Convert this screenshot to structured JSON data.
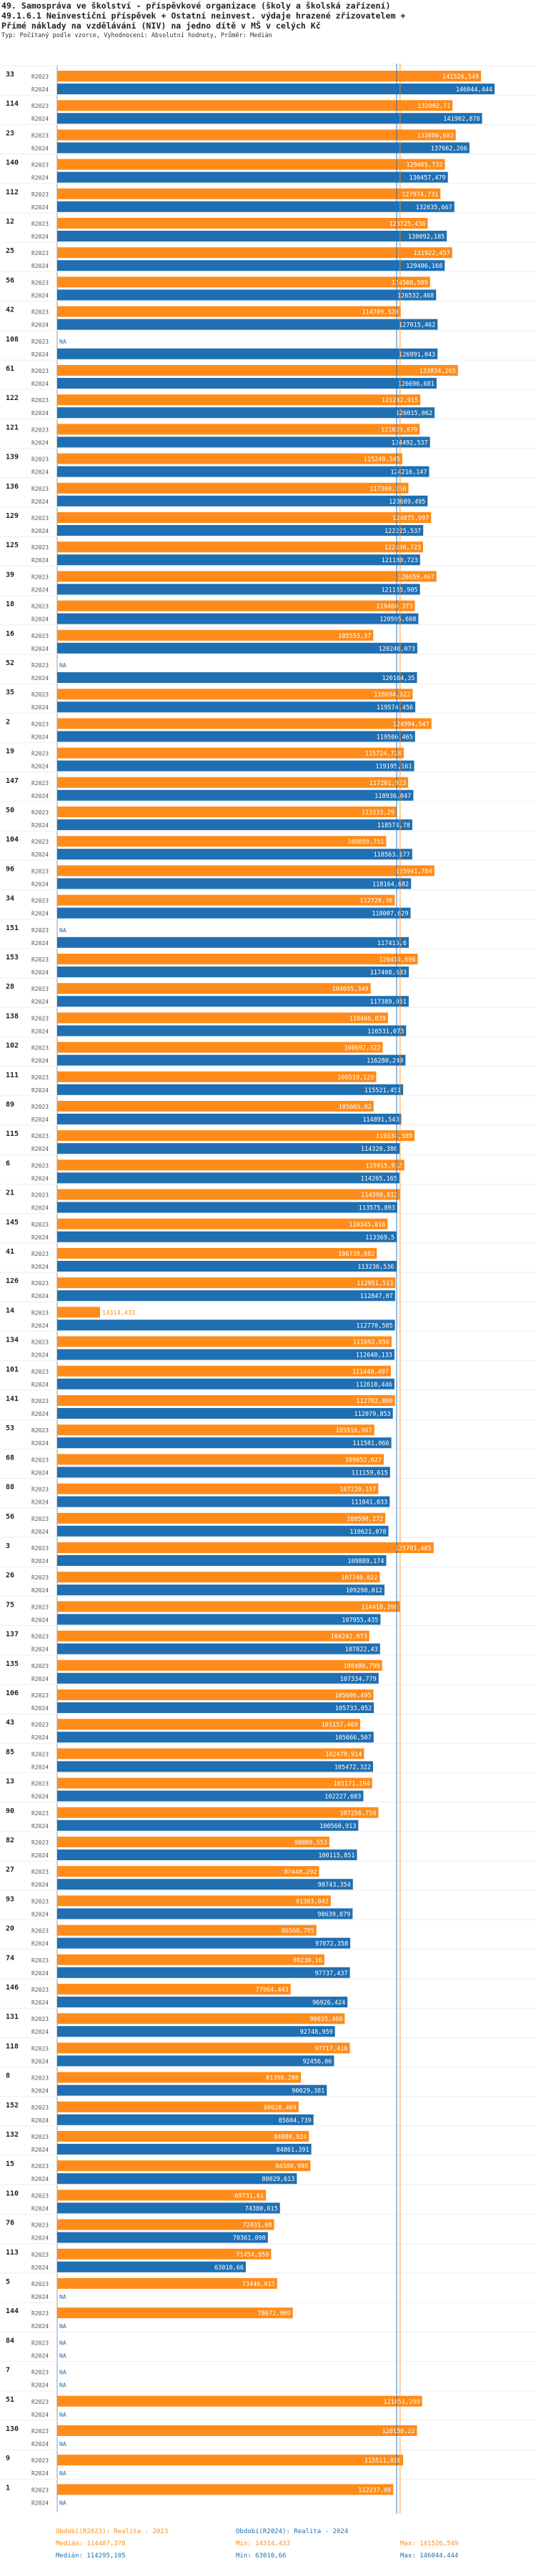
{
  "header": {
    "title_line1": "49. Samospráva ve školství - příspěvkové organizace (školy a školská zařízení)",
    "title_line2": "49.1.6.1 Neinvestiční příspěvek + Ostatní neinvest. výdaje hrazené zřizovatelem +",
    "title_line3": "Přímé náklady na vzdělávání (NIV) na jedno dítě v MŠ v celých Kč",
    "subtitle": "Typ: Počítaný podle vzorce, Vyhodnocení: Absolutní hodnoty, Průměr: Medián"
  },
  "colors": {
    "r2023": "#ff8c1a",
    "r2024": "#1f6fb2",
    "median2023": "#ff8c1a",
    "median2024": "#1f6fb2"
  },
  "legend": {
    "s2023": "Období(R2023): Realita - 2023",
    "s2024": "Období(R2024): Realita - 2024",
    "median2023": "Medián: 114487,378",
    "median2024": "Medián: 114295,105",
    "min2023": "Min: 14314,433",
    "min2024": "Min: 63010,66",
    "max2023": "Max: 141526,549",
    "max2024": "Max: 146044,444"
  },
  "chart_data": {
    "type": "bar",
    "orientation": "horizontal",
    "title": "49.1.6.1 Neinvestiční příspěvek + Ostatní neinvest. výdaje hrazené zřizovatelem + Přímé náklady na vzdělávání (NIV) na jedno dítě v MŠ v celých Kč",
    "xlim": [
      0,
      146044.444
    ],
    "series_names": [
      "R2023",
      "R2024"
    ],
    "medians": {
      "R2023": 114487.378,
      "R2024": 114295.105
    },
    "categories": [
      "33",
      "114",
      "23",
      "140",
      "112",
      "12",
      "25",
      "56",
      "42",
      "108",
      "61",
      "122",
      "121",
      "139",
      "136",
      "129",
      "125",
      "39",
      "18",
      "16",
      "52",
      "35",
      "2",
      "19",
      "147",
      "50",
      "104",
      "96",
      "34",
      "151",
      "153",
      "28",
      "138",
      "102",
      "111",
      "89",
      "115",
      "6",
      "21",
      "145",
      "41",
      "126",
      "14",
      "134",
      "101",
      "141",
      "53",
      "68",
      "88",
      "56",
      "3",
      "26",
      "75",
      "137",
      "135",
      "106",
      "43",
      "85",
      "13",
      "90",
      "82",
      "27",
      "93",
      "20",
      "74",
      "146",
      "131",
      "118",
      "8",
      "152",
      "132",
      "15",
      "110",
      "76",
      "113",
      "5",
      "144",
      "84",
      "7",
      "51",
      "130",
      "9",
      "1"
    ],
    "r2023_labels": [
      "141526,549",
      "132002,71",
      "133086,683",
      "129465,732",
      "127974,731",
      "123725,436",
      "131922,457",
      "124508,509",
      "114709,528",
      "NA",
      "133834,265",
      "121242,915",
      "121026,879",
      "115240,345",
      "117300,256",
      "124875,997",
      "122180,723",
      "126659,467",
      "119460,373",
      "105553,37",
      "NA",
      "118694,622",
      "124994,547",
      "115724,728",
      "117201,923",
      "113333,29",
      "109859,751",
      "125941,784",
      "112728,36",
      "NA",
      "120414,696",
      "104695,349",
      "110466,039",
      "108692,322",
      "106519,129",
      "105665,82",
      "119334,589",
      "115915,912",
      "114398,012",
      "110345,016",
      "106738,082",
      "112951,513",
      "14314,433",
      "111692,056",
      "111448,497",
      "112782,808",
      "105916,967",
      "109052,027",
      "107220,157",
      "109590,272",
      "125701,405",
      "107740,022",
      "114418,396",
      "104242,873",
      "108480,799",
      "105606,495",
      "101157,469",
      "102479,914",
      "105171,194",
      "107256,758",
      "90889,553",
      "87448,292",
      "91383,042",
      "86568,795",
      "89230,16",
      "77964,443",
      "96035,466",
      "97717,416",
      "81398,288",
      "80628,409",
      "84080,924",
      "84580,998",
      "69731,61",
      "72431,08",
      "71454,959",
      "73446,015",
      "78672,909",
      "NA",
      "NA",
      "121851,299",
      "120158,22",
      "115511,816",
      "112237,08"
    ],
    "r2024_labels": [
      "146044,444",
      "141902,878",
      "137662,266",
      "130457,479",
      "132635,667",
      "130092,185",
      "129406,168",
      "126532,468",
      "127015,462",
      "126991,043",
      "126696,681",
      "126015,062",
      "124492,537",
      "124216,147",
      "123689,495",
      "122225,537",
      "121180,723",
      "121135,905",
      "120595,608",
      "120246,073",
      "120164,35",
      "119574,456",
      "119506,465",
      "119195,161",
      "118936,047",
      "118574,78",
      "118563,177",
      "118164,682",
      "118007,629",
      "117415,6",
      "117408,683",
      "117389,051",
      "116531,073",
      "116280,249",
      "115521,451",
      "114891,543",
      "114320,386",
      "114265,165",
      "113575,893",
      "113369,5",
      "113236,536",
      "112847,07",
      "112770,585",
      "112640,133",
      "112610,446",
      "112079,853",
      "111581,066",
      "111159,615",
      "111041,033",
      "110621,078",
      "109889,174",
      "109298,012",
      "107955,435",
      "107822,43",
      "107334,779",
      "105733,052",
      "105666,507",
      "105472,322",
      "102227,603",
      "100560,913",
      "100115,851",
      "98743,354",
      "98639,879",
      "97872,358",
      "97737,437",
      "96926,424",
      "92748,959",
      "92456,06",
      "90029,381",
      "85604,739",
      "84861,391",
      "80029,613",
      "74380,015",
      "70361,098",
      "63010,66",
      "NA",
      "NA",
      "NA",
      "NA",
      "NA",
      "NA",
      "NA",
      "NA"
    ]
  }
}
